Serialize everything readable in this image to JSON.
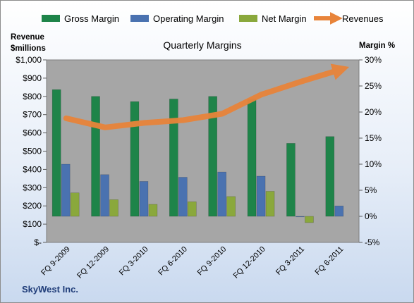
{
  "chart_data": {
    "type": "bar",
    "title": "Quarterly Margins",
    "footer": "SkyWest Inc.",
    "categories": [
      "FQ 9-2009",
      "FQ 12-2009",
      "FQ 3-2010",
      "FQ 6-2010",
      "FQ 9-2010",
      "FQ 12-2010",
      "FQ 3-2011",
      "FQ 6-2011"
    ],
    "series": [
      {
        "name": "Gross Margin",
        "axis": "right",
        "type": "bar",
        "color": "#1e8449",
        "values": [
          24.3,
          23.0,
          22.0,
          22.5,
          23.0,
          22.5,
          14.0,
          15.3
        ]
      },
      {
        "name": "Operating Margin",
        "axis": "right",
        "type": "bar",
        "color": "#4a72b0",
        "values": [
          10.0,
          8.0,
          6.7,
          7.5,
          8.5,
          7.7,
          0.0,
          2.0
        ]
      },
      {
        "name": "Net Margin",
        "axis": "right",
        "type": "bar",
        "color": "#8aa83c",
        "values": [
          4.5,
          3.2,
          2.3,
          2.8,
          3.8,
          4.8,
          -1.2,
          null
        ]
      },
      {
        "name": "Revenues",
        "axis": "left",
        "type": "line",
        "color": "#e8843a",
        "values": [
          680,
          630,
          655,
          670,
          705,
          810,
          880,
          945
        ]
      }
    ],
    "y_left": {
      "label_line1": "Revenue",
      "label_line2": "$millions",
      "min": 0,
      "max": 1000,
      "ticks": [
        "$-",
        "$100",
        "$200",
        "$300",
        "$400",
        "$500",
        "$600",
        "$700",
        "$800",
        "$900",
        "$1,000"
      ]
    },
    "y_right": {
      "label": "Margin %",
      "min": -5,
      "max": 30,
      "ticks": [
        "-5%",
        "0%",
        "5%",
        "10%",
        "15%",
        "20%",
        "25%",
        "30%"
      ]
    },
    "legend_position": "top",
    "grid": false
  }
}
